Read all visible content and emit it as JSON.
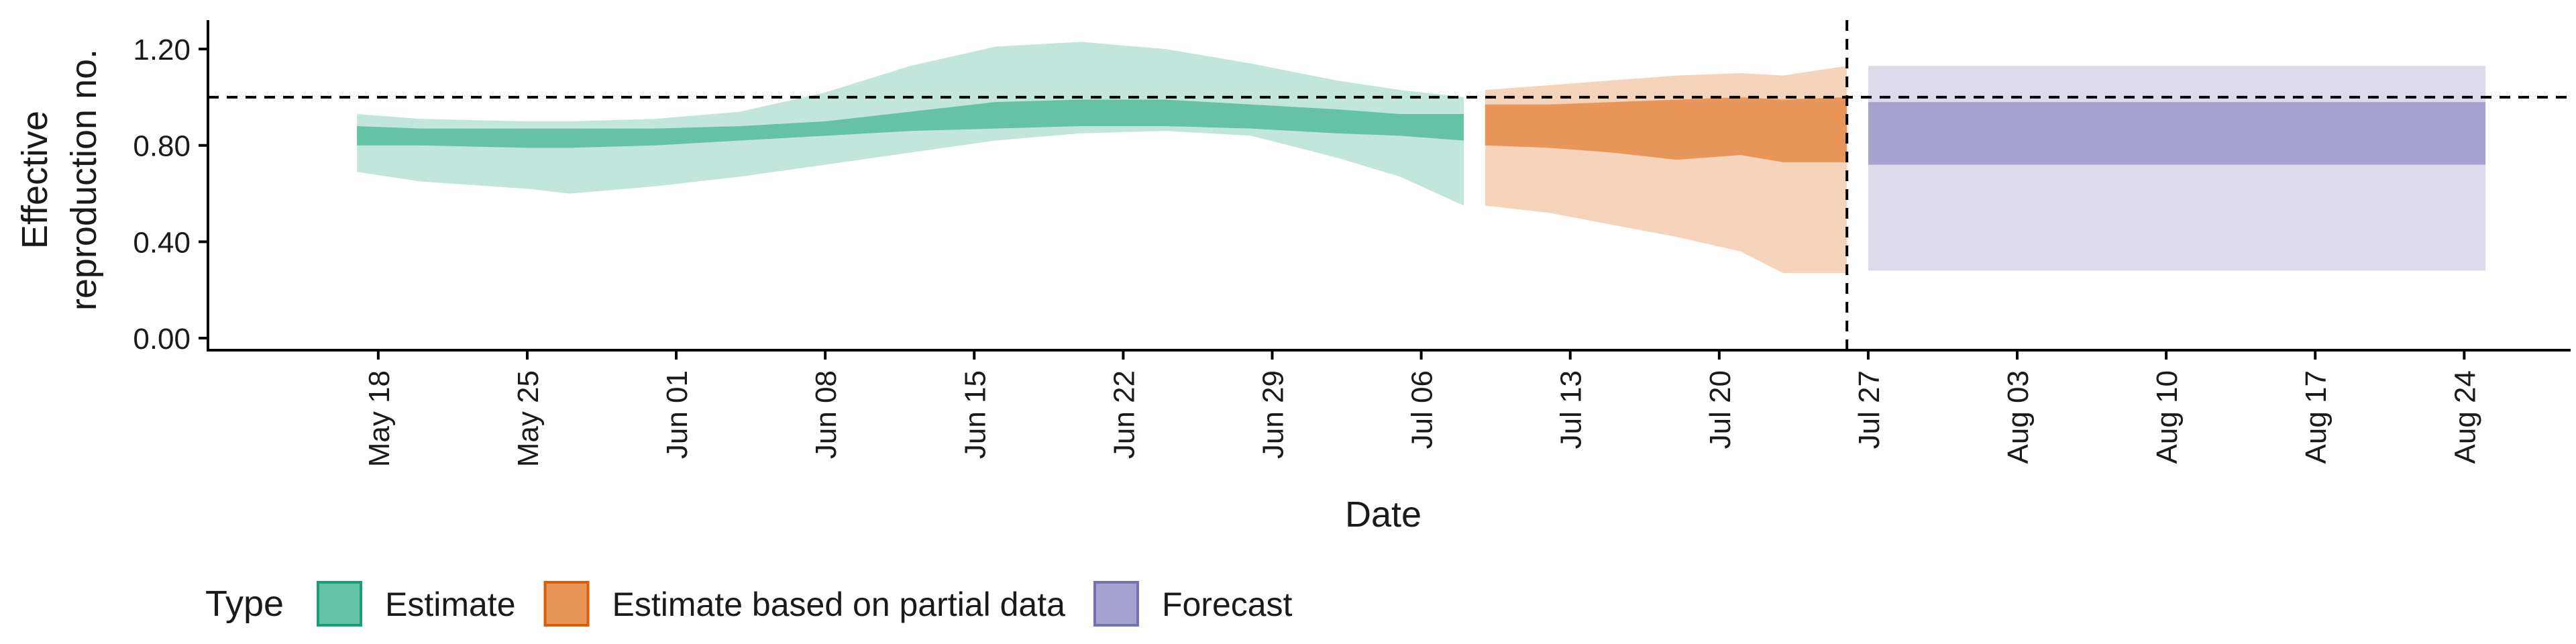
{
  "chart_data": {
    "type": "area",
    "title": "",
    "xlabel": "Date",
    "ylabel_lines": [
      "Effective",
      "reproduction no."
    ],
    "ylim": [
      -0.05,
      1.32
    ],
    "y_ticks": [
      {
        "value": 0.0,
        "label": "0.00"
      },
      {
        "value": 0.4,
        "label": "0.40"
      },
      {
        "value": 0.8,
        "label": "0.80"
      },
      {
        "value": 1.2,
        "label": "1.20"
      }
    ],
    "x_start_date": "2020-05-10",
    "x_end_date": "2020-08-29",
    "x_ticks": [
      {
        "date": "2020-05-18",
        "label": "May 18"
      },
      {
        "date": "2020-05-25",
        "label": "May 25"
      },
      {
        "date": "2020-06-01",
        "label": "Jun 01"
      },
      {
        "date": "2020-06-08",
        "label": "Jun 08"
      },
      {
        "date": "2020-06-15",
        "label": "Jun 15"
      },
      {
        "date": "2020-06-22",
        "label": "Jun 22"
      },
      {
        "date": "2020-06-29",
        "label": "Jun 29"
      },
      {
        "date": "2020-07-06",
        "label": "Jul 06"
      },
      {
        "date": "2020-07-13",
        "label": "Jul 13"
      },
      {
        "date": "2020-07-20",
        "label": "Jul 20"
      },
      {
        "date": "2020-07-27",
        "label": "Jul 27"
      },
      {
        "date": "2020-08-03",
        "label": "Aug 03"
      },
      {
        "date": "2020-08-10",
        "label": "Aug 10"
      },
      {
        "date": "2020-08-17",
        "label": "Aug 17"
      },
      {
        "date": "2020-08-24",
        "label": "Aug 24"
      }
    ],
    "reference_hline": 1.0,
    "forecast_vline_date": "2020-07-26",
    "legend": {
      "title": "Type",
      "position": "bottom-left",
      "items": [
        {
          "label": "Estimate",
          "fill": "#66c2a5",
          "stroke": "#1b9e77"
        },
        {
          "label": "Estimate based on partial data",
          "fill": "#e8965a",
          "stroke": "#d95f02"
        },
        {
          "label": "Forecast",
          "fill": "#a7a3d1",
          "stroke": "#7570b3"
        }
      ]
    },
    "series": [
      {
        "name": "Estimate",
        "outer_color": "#c3e6dc",
        "inner_color": "#66c2a5",
        "points": [
          {
            "date": "2020-05-17",
            "lo90": 0.69,
            "lo50": 0.8,
            "hi50": 0.88,
            "hi90": 0.93
          },
          {
            "date": "2020-05-20",
            "lo90": 0.65,
            "lo50": 0.8,
            "hi50": 0.87,
            "hi90": 0.91
          },
          {
            "date": "2020-05-25",
            "lo90": 0.62,
            "lo50": 0.79,
            "hi50": 0.87,
            "hi90": 0.9
          },
          {
            "date": "2020-05-27",
            "lo90": 0.6,
            "lo50": 0.79,
            "hi50": 0.87,
            "hi90": 0.9
          },
          {
            "date": "2020-05-31",
            "lo90": 0.63,
            "lo50": 0.8,
            "hi50": 0.87,
            "hi90": 0.91
          },
          {
            "date": "2020-06-04",
            "lo90": 0.67,
            "lo50": 0.82,
            "hi50": 0.88,
            "hi90": 0.94
          },
          {
            "date": "2020-06-08",
            "lo90": 0.72,
            "lo50": 0.84,
            "hi50": 0.9,
            "hi90": 1.02
          },
          {
            "date": "2020-06-12",
            "lo90": 0.77,
            "lo50": 0.86,
            "hi50": 0.94,
            "hi90": 1.13
          },
          {
            "date": "2020-06-16",
            "lo90": 0.82,
            "lo50": 0.87,
            "hi50": 0.98,
            "hi90": 1.21
          },
          {
            "date": "2020-06-20",
            "lo90": 0.85,
            "lo50": 0.88,
            "hi50": 0.99,
            "hi90": 1.23
          },
          {
            "date": "2020-06-24",
            "lo90": 0.86,
            "lo50": 0.88,
            "hi50": 0.99,
            "hi90": 1.2
          },
          {
            "date": "2020-06-28",
            "lo90": 0.84,
            "lo50": 0.87,
            "hi50": 0.97,
            "hi90": 1.14
          },
          {
            "date": "2020-07-02",
            "lo90": 0.75,
            "lo50": 0.85,
            "hi50": 0.95,
            "hi90": 1.07
          },
          {
            "date": "2020-07-05",
            "lo90": 0.67,
            "lo50": 0.84,
            "hi50": 0.93,
            "hi90": 1.03
          },
          {
            "date": "2020-07-08",
            "lo90": 0.55,
            "lo50": 0.82,
            "hi50": 0.93,
            "hi90": 1.0
          }
        ]
      },
      {
        "name": "Estimate based on partial data",
        "outer_color": "#f6d4bb",
        "inner_color": "#e8965a",
        "points": [
          {
            "date": "2020-07-09",
            "lo90": 0.55,
            "lo50": 0.8,
            "hi50": 0.97,
            "hi90": 1.03
          },
          {
            "date": "2020-07-12",
            "lo90": 0.52,
            "lo50": 0.79,
            "hi50": 0.97,
            "hi90": 1.05
          },
          {
            "date": "2020-07-15",
            "lo90": 0.47,
            "lo50": 0.77,
            "hi50": 0.98,
            "hi90": 1.07
          },
          {
            "date": "2020-07-18",
            "lo90": 0.42,
            "lo50": 0.74,
            "hi50": 0.99,
            "hi90": 1.09
          },
          {
            "date": "2020-07-21",
            "lo90": 0.36,
            "lo50": 0.76,
            "hi50": 1.0,
            "hi90": 1.1
          },
          {
            "date": "2020-07-23",
            "lo90": 0.27,
            "lo50": 0.73,
            "hi50": 0.99,
            "hi90": 1.09
          },
          {
            "date": "2020-07-26",
            "lo90": 0.27,
            "lo50": 0.73,
            "hi50": 1.0,
            "hi90": 1.13
          }
        ]
      },
      {
        "name": "Forecast",
        "outer_color": "#dcdaeb",
        "inner_color": "#a7a3d1",
        "points": [
          {
            "date": "2020-07-27",
            "lo90": 0.28,
            "lo50": 0.72,
            "hi50": 0.98,
            "hi90": 1.13
          },
          {
            "date": "2020-08-25",
            "lo90": 0.28,
            "lo50": 0.72,
            "hi50": 0.98,
            "hi90": 1.13
          }
        ]
      }
    ]
  }
}
